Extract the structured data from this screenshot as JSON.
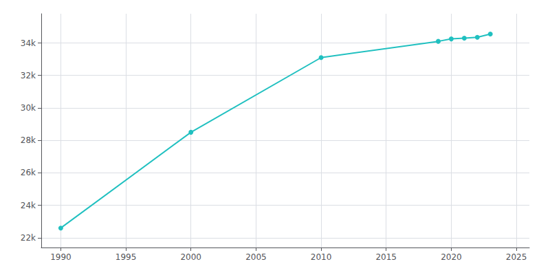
{
  "chart_data": {
    "type": "line",
    "x": [
      1990,
      2000,
      2010,
      2019,
      2020,
      2021,
      2022,
      2023
    ],
    "values": [
      22600,
      28500,
      33100,
      34100,
      34250,
      34300,
      34350,
      34550
    ],
    "color": "#20C0C0",
    "marker": "circle",
    "xlim": [
      1988.5,
      2026
    ],
    "xticks": [
      1990,
      1995,
      2000,
      2005,
      2010,
      2015,
      2020,
      2025
    ],
    "ylim": [
      21400,
      35800
    ],
    "yticks": [
      {
        "value": 22000,
        "label": "22k"
      },
      {
        "value": 24000,
        "label": "24k"
      },
      {
        "value": 26000,
        "label": "26k"
      },
      {
        "value": 28000,
        "label": "28k"
      },
      {
        "value": 30000,
        "label": "30k"
      },
      {
        "value": 32000,
        "label": "32k"
      },
      {
        "value": 34000,
        "label": "34k"
      }
    ],
    "grid": true
  }
}
